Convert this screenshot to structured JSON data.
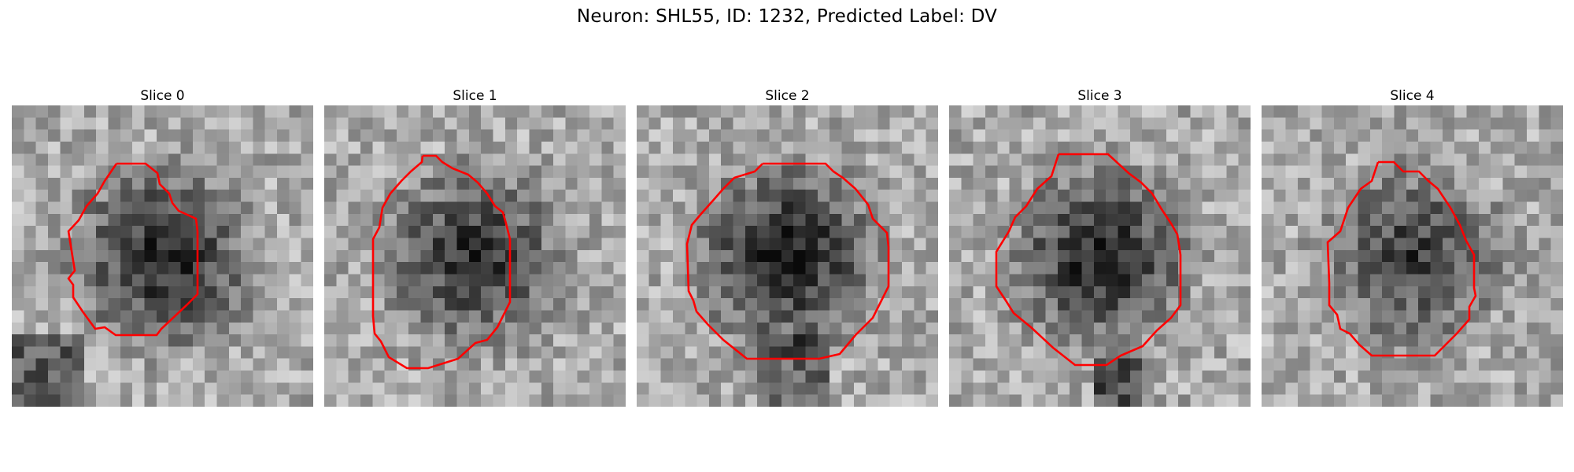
{
  "figure": {
    "suptitle": "Neuron: SHL55, ID: 1232, Predicted Label: DV"
  },
  "colors": {
    "contour": "#ff0000",
    "background": "#ffffff"
  },
  "panels": [
    {
      "title": "Slice 0",
      "seed": 11,
      "dark": 0.55
    },
    {
      "title": "Slice 1",
      "seed": 23,
      "dark": 0.5
    },
    {
      "title": "Slice 2",
      "seed": 37,
      "dark": 0.6
    },
    {
      "title": "Slice 3",
      "seed": 41,
      "dark": 0.55
    },
    {
      "title": "Slice 4",
      "seed": 53,
      "dark": 0.45
    }
  ]
}
